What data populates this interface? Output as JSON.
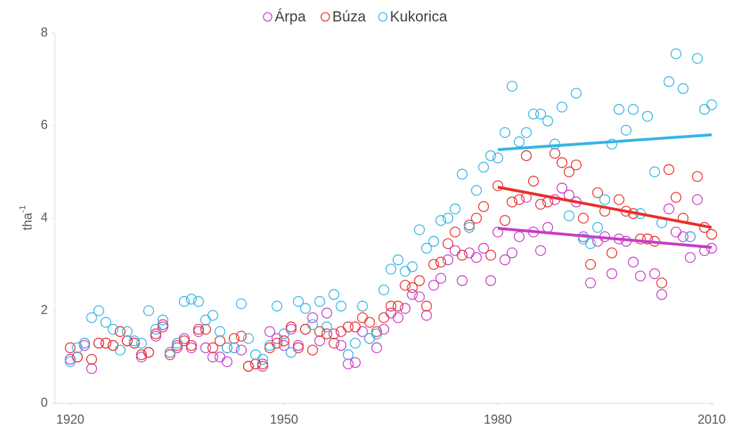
{
  "chart_data": {
    "type": "scatter",
    "ylabel": "tha",
    "ylabel_sup": "-1",
    "xlim": [
      1920,
      2010
    ],
    "xticks": [
      1920,
      1950,
      1980,
      2010
    ],
    "ylim": [
      0,
      8
    ],
    "yticks": [
      0,
      2,
      4,
      6,
      8
    ],
    "legend": "top",
    "x": [
      1920,
      1921,
      1922,
      1923,
      1924,
      1925,
      1926,
      1927,
      1928,
      1929,
      1930,
      1931,
      1932,
      1933,
      1934,
      1935,
      1936,
      1937,
      1938,
      1939,
      1940,
      1941,
      1942,
      1943,
      1944,
      1945,
      1946,
      1947,
      1948,
      1949,
      1950,
      1951,
      1952,
      1953,
      1954,
      1955,
      1956,
      1957,
      1958,
      1959,
      1960,
      1961,
      1962,
      1963,
      1964,
      1965,
      1966,
      1967,
      1968,
      1969,
      1970,
      1971,
      1972,
      1973,
      1974,
      1975,
      1976,
      1977,
      1978,
      1979,
      1980,
      1981,
      1982,
      1983,
      1984,
      1985,
      1986,
      1987,
      1988,
      1989,
      1990,
      1991,
      1992,
      1993,
      1994,
      1995,
      1996,
      1997,
      1998,
      1999,
      2000,
      2001,
      2002,
      2003,
      2004,
      2005,
      2006,
      2007,
      2008,
      2009,
      2010
    ],
    "series": [
      {
        "name": "Árpa",
        "color": "#c83cc8",
        "values": [
          0.95,
          1.0,
          1.25,
          0.75,
          1.3,
          1.3,
          1.25,
          1.55,
          1.35,
          1.3,
          1.0,
          1.1,
          1.45,
          1.65,
          1.1,
          1.2,
          1.4,
          1.2,
          1.55,
          1.2,
          1.0,
          1.0,
          0.9,
          1.2,
          1.15,
          0.8,
          0.85,
          0.8,
          1.55,
          1.4,
          1.25,
          1.6,
          1.25,
          1.6,
          1.85,
          1.35,
          1.95,
          1.5,
          1.25,
          0.85,
          0.88,
          1.55,
          1.4,
          1.2,
          1.6,
          1.95,
          1.85,
          2.05,
          2.35,
          2.3,
          1.9,
          2.55,
          2.7,
          3.1,
          3.3,
          2.65,
          3.25,
          3.15,
          3.35,
          2.65,
          3.7,
          3.1,
          3.25,
          3.6,
          4.45,
          3.7,
          3.3,
          3.8,
          4.4,
          4.65,
          4.5,
          4.35,
          3.6,
          2.6,
          3.5,
          3.6,
          2.8,
          3.55,
          3.5,
          3.05,
          2.75,
          3.55,
          2.8,
          2.35,
          4.2,
          3.7,
          3.6,
          3.15,
          4.4,
          3.3,
          3.35
        ],
        "trend": {
          "x": [
            1980,
            2010
          ],
          "values": [
            3.78,
            3.37
          ]
        }
      },
      {
        "name": "Búza",
        "color": "#e8302a",
        "values": [
          1.2,
          1.0,
          1.3,
          0.95,
          1.3,
          1.3,
          1.25,
          1.55,
          1.35,
          1.3,
          1.05,
          1.1,
          1.5,
          1.7,
          1.05,
          1.25,
          1.35,
          1.25,
          1.6,
          1.6,
          1.2,
          1.35,
          1.2,
          1.4,
          1.45,
          0.8,
          0.85,
          0.85,
          1.2,
          1.3,
          1.35,
          1.65,
          1.2,
          1.6,
          1.15,
          1.55,
          1.5,
          1.3,
          1.55,
          1.65,
          1.65,
          1.85,
          1.75,
          1.55,
          1.85,
          2.1,
          2.1,
          2.55,
          2.5,
          2.65,
          2.1,
          3.0,
          3.05,
          3.45,
          3.7,
          3.2,
          3.85,
          4.0,
          4.25,
          3.2,
          4.7,
          3.95,
          4.35,
          4.4,
          5.35,
          4.8,
          4.3,
          4.35,
          5.4,
          5.2,
          5.0,
          5.15,
          4.0,
          3.0,
          4.55,
          4.15,
          3.25,
          4.4,
          4.15,
          4.1,
          3.55,
          3.55,
          3.5,
          2.6,
          5.05,
          4.45,
          4.0,
          3.6,
          4.9,
          3.8,
          3.65
        ],
        "trend": {
          "x": [
            1980,
            2010
          ],
          "values": [
            4.67,
            3.8
          ]
        }
      },
      {
        "name": "Kukorica",
        "color": "#33b5e5",
        "values": [
          0.9,
          1.2,
          1.3,
          1.85,
          2.0,
          1.75,
          1.6,
          1.15,
          1.55,
          1.35,
          1.3,
          2.0,
          1.6,
          1.8,
          1.1,
          1.3,
          2.2,
          2.25,
          2.2,
          1.8,
          1.9,
          1.55,
          1.2,
          1.2,
          2.15,
          1.4,
          1.05,
          0.95,
          1.25,
          2.1,
          1.5,
          1.1,
          2.2,
          2.05,
          1.7,
          2.2,
          1.65,
          2.35,
          2.1,
          1.05,
          1.3,
          2.1,
          1.4,
          1.5,
          2.45,
          2.9,
          3.1,
          2.85,
          2.95,
          3.75,
          3.35,
          3.5,
          3.95,
          4.0,
          4.2,
          4.95,
          3.8,
          4.6,
          5.1,
          5.35,
          5.3,
          5.85,
          6.85,
          5.65,
          5.85,
          6.25,
          6.25,
          6.1,
          5.6,
          6.4,
          4.05,
          6.7,
          3.55,
          3.45,
          3.8,
          4.4,
          5.6,
          6.35,
          5.9,
          6.35,
          4.1,
          6.2,
          5.0,
          3.9,
          6.95,
          7.55,
          6.8,
          3.6,
          7.45,
          6.35,
          6.45
        ],
        "trend": {
          "x": [
            1980,
            2010
          ],
          "values": [
            5.48,
            5.8
          ]
        }
      }
    ]
  }
}
